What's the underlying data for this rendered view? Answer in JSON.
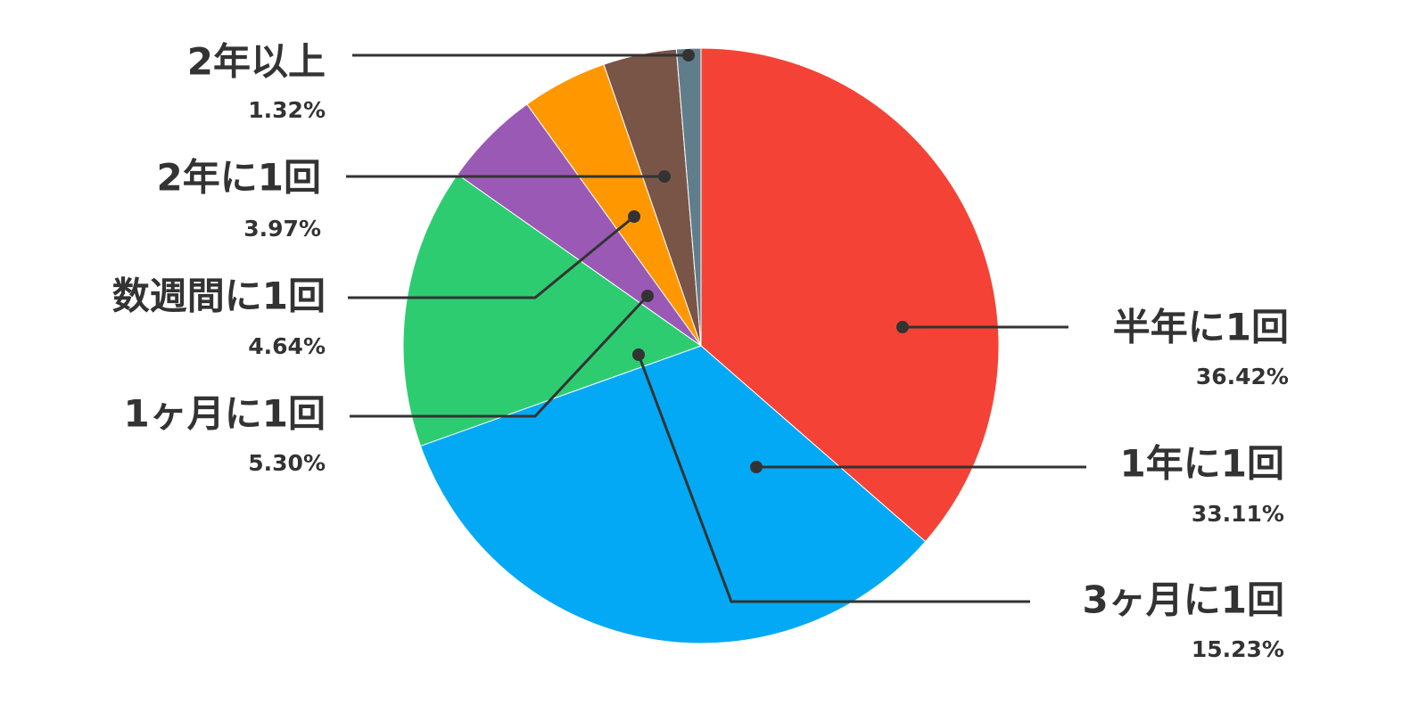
{
  "chart_data": {
    "type": "pie",
    "categories": [
      "半年に1回",
      "1年に1回",
      "3ヶ月に1回",
      "1ヶ月に1回",
      "数週間に1回",
      "2年に1回",
      "2年以上"
    ],
    "values": [
      36.42,
      33.11,
      15.23,
      5.3,
      4.64,
      3.97,
      1.32
    ],
    "value_labels": [
      "36.42%",
      "33.11%",
      "15.23%",
      "5.30%",
      "4.64%",
      "3.97%",
      "1.32%"
    ],
    "colors": [
      "#f44336",
      "#03a9f4",
      "#2ecc71",
      "#9b59b6",
      "#ff9800",
      "#795548",
      "#607d8b"
    ]
  }
}
